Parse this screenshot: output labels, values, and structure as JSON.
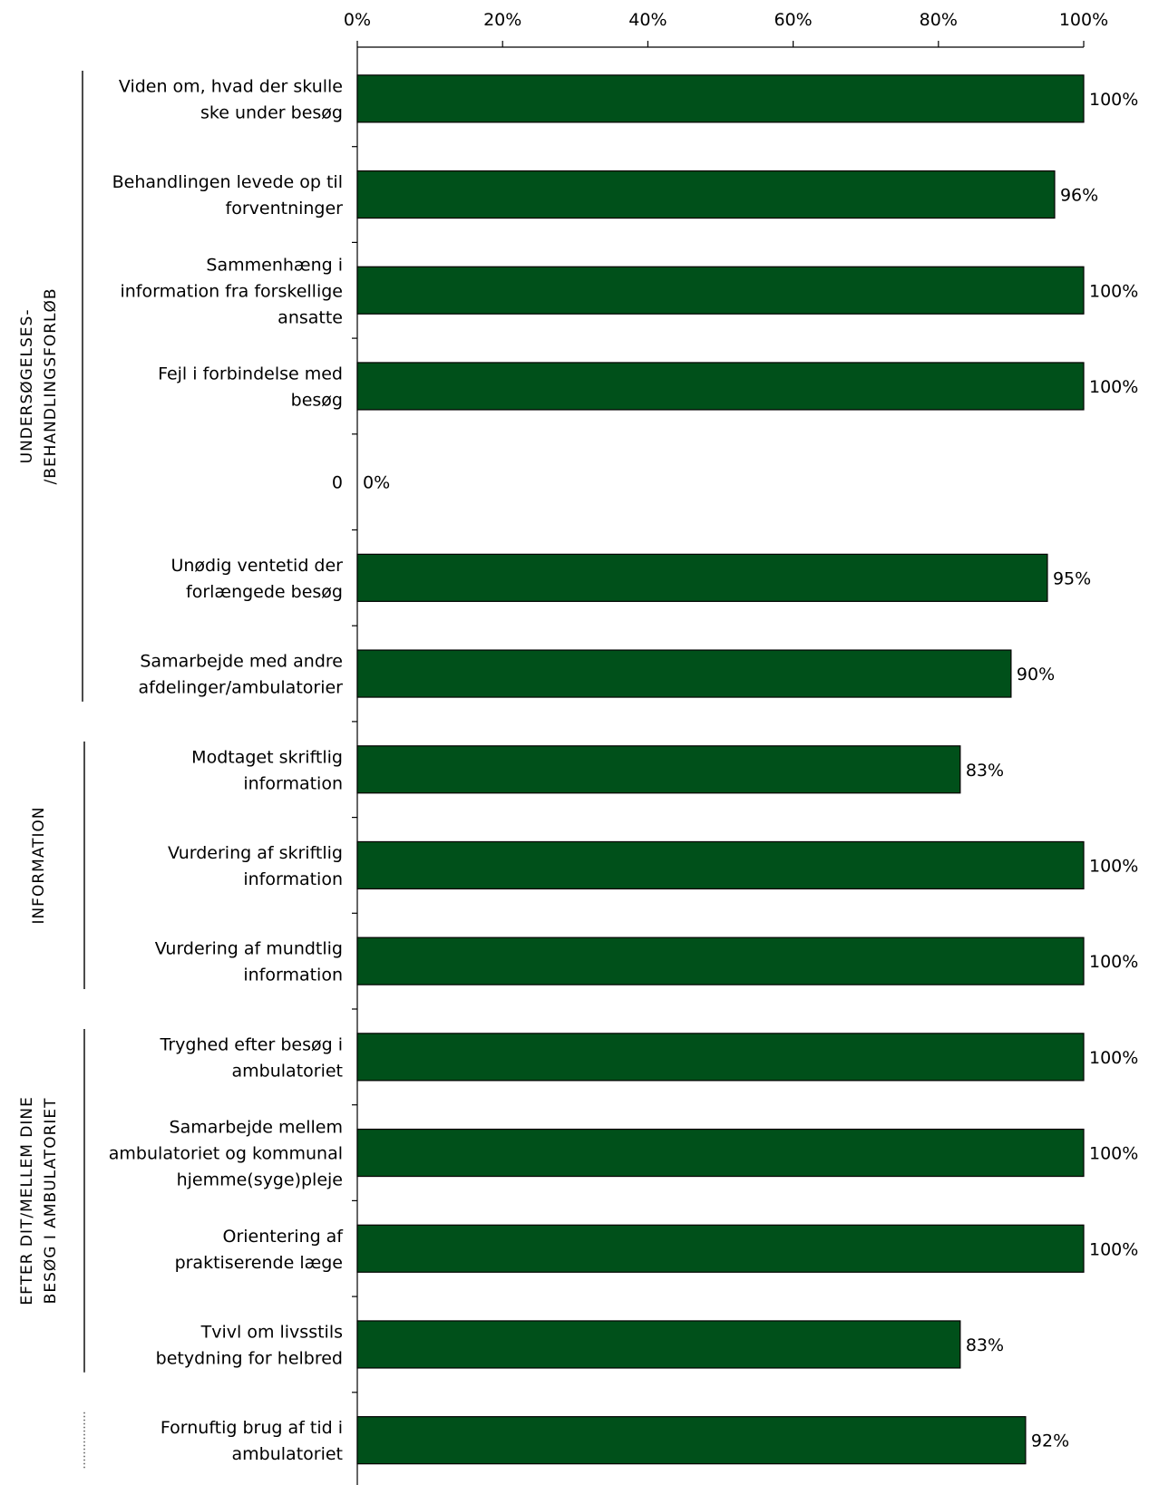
{
  "chart_data": {
    "type": "bar",
    "orientation": "horizontal",
    "title": "",
    "xlabel": "",
    "ylabel": "",
    "xlim": [
      0,
      100
    ],
    "x_ticks": [
      "0%",
      "20%",
      "40%",
      "60%",
      "80%",
      "100%"
    ],
    "x_axis_position": "top",
    "grid": false,
    "legend": "none",
    "colors": {
      "bar": "#00501a",
      "bar_edge": "#000000",
      "axis": "#000000"
    },
    "categories": [
      {
        "lines": [
          "Viden om, hvad der skulle",
          "ske under besøg"
        ],
        "value": 100,
        "label": "100%"
      },
      {
        "lines": [
          "Behandlingen levede op til",
          "forventninger"
        ],
        "value": 96,
        "label": "96%"
      },
      {
        "lines": [
          "Sammenhæng i",
          "information fra forskellige",
          "ansatte"
        ],
        "value": 100,
        "label": "100%"
      },
      {
        "lines": [
          "Fejl i forbindelse med",
          "besøg"
        ],
        "value": 100,
        "label": "100%"
      },
      {
        "lines": [
          "0"
        ],
        "value": 0,
        "label": "0%"
      },
      {
        "lines": [
          "Unødig ventetid der",
          "forlængede besøg"
        ],
        "value": 95,
        "label": "95%"
      },
      {
        "lines": [
          "Samarbejde med andre",
          "afdelinger/ambulatorier"
        ],
        "value": 90,
        "label": "90%"
      },
      {
        "lines": [
          "Modtaget skriftlig",
          "information"
        ],
        "value": 83,
        "label": "83%"
      },
      {
        "lines": [
          "Vurdering af skriftlig",
          "information"
        ],
        "value": 100,
        "label": "100%"
      },
      {
        "lines": [
          "Vurdering af mundtlig",
          "information"
        ],
        "value": 100,
        "label": "100%"
      },
      {
        "lines": [
          "Tryghed efter besøg i",
          "ambulatoriet"
        ],
        "value": 100,
        "label": "100%"
      },
      {
        "lines": [
          "Samarbejde mellem",
          "ambulatoriet og kommunal",
          "hjemme(syge)pleje"
        ],
        "value": 100,
        "label": "100%"
      },
      {
        "lines": [
          "Orientering af",
          "praktiserende læge"
        ],
        "value": 100,
        "label": "100%"
      },
      {
        "lines": [
          "Tvivl om livsstils",
          "betydning for helbred"
        ],
        "value": 83,
        "label": "83%"
      },
      {
        "lines": [
          "Fornuftig brug af tid i",
          "ambulatoriet"
        ],
        "value": 92,
        "label": "92%"
      }
    ],
    "groups": [
      {
        "lines": [
          "UNDERSØGELSES-",
          "/BEHANDLINGSFORLØB"
        ],
        "start": 0,
        "end": 6,
        "style": "solid"
      },
      {
        "lines": [
          "INFORMATION"
        ],
        "start": 7,
        "end": 9,
        "style": "solid"
      },
      {
        "lines": [
          "EFTER DIT/MELLEM DINE",
          "BESØG I AMBULATORIET"
        ],
        "start": 10,
        "end": 13,
        "style": "solid"
      },
      {
        "lines": [],
        "start": 14,
        "end": 14,
        "style": "dotted"
      }
    ]
  }
}
